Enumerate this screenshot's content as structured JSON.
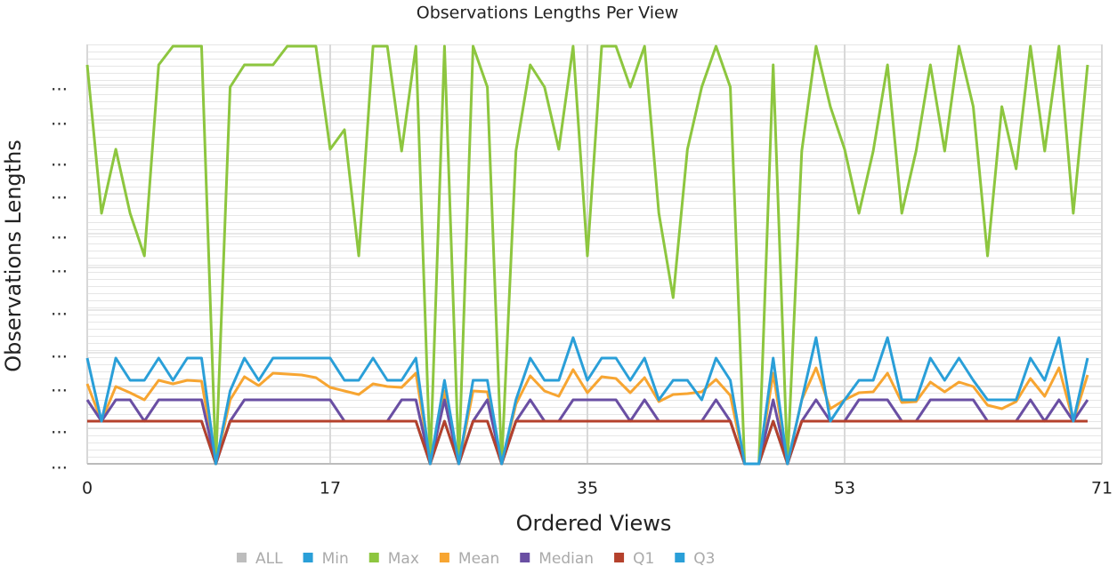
{
  "chart_data": {
    "type": "line",
    "title": "Observations Lengths Per View",
    "x_label": "Ordered Views",
    "y_label": "Observations Lengths",
    "x": [
      0,
      1,
      2,
      3,
      4,
      5,
      6,
      7,
      8,
      9,
      10,
      11,
      12,
      13,
      14,
      15,
      16,
      17,
      18,
      19,
      20,
      21,
      22,
      23,
      24,
      25,
      26,
      27,
      28,
      29,
      30,
      31,
      32,
      33,
      34,
      35,
      36,
      37,
      38,
      39,
      40,
      41,
      42,
      43,
      44,
      45,
      46,
      47,
      48,
      49,
      50,
      51,
      52,
      53,
      54,
      55,
      56,
      57,
      58,
      59,
      60,
      61,
      62,
      63,
      64,
      65,
      66,
      67,
      68,
      69,
      70
    ],
    "xlim": [
      0,
      71
    ],
    "xticks": [
      0,
      17,
      35,
      53,
      71
    ],
    "ylim": [
      0,
      472
    ],
    "yticks": [
      {
        "value": 0,
        "label": "…"
      },
      {
        "value": 40,
        "label": "…"
      },
      {
        "value": 87,
        "label": "…"
      },
      {
        "value": 125,
        "label": "…"
      },
      {
        "value": 173,
        "label": "…"
      },
      {
        "value": 221,
        "label": "…"
      },
      {
        "value": 259,
        "label": "…"
      },
      {
        "value": 304,
        "label": "…"
      },
      {
        "value": 341,
        "label": "…"
      },
      {
        "value": 387,
        "label": "…"
      },
      {
        "value": 426,
        "label": "…"
      }
    ],
    "grid": true,
    "legend_position": "bottom",
    "legend_extra": [
      {
        "name": "ALL",
        "color": "#bdbdbd"
      }
    ],
    "series": [
      {
        "name": "Min",
        "color": "#2a9fd8",
        "values": [
          48,
          48,
          48,
          48,
          48,
          48,
          48,
          48,
          48,
          0,
          48,
          48,
          48,
          48,
          48,
          48,
          48,
          48,
          48,
          48,
          48,
          48,
          48,
          48,
          0,
          48,
          0,
          48,
          48,
          0,
          48,
          48,
          48,
          48,
          48,
          48,
          48,
          48,
          48,
          48,
          48,
          48,
          48,
          48,
          48,
          48,
          0,
          0,
          48,
          0,
          48,
          48,
          48,
          48,
          48,
          48,
          48,
          48,
          48,
          48,
          48,
          48,
          48,
          48,
          48,
          48,
          48,
          48,
          48,
          48,
          48
        ]
      },
      {
        "name": "Max",
        "color": "#8dc63f",
        "values": [
          449,
          282,
          354,
          282,
          234,
          449,
          470,
          470,
          470,
          0,
          424,
          449,
          449,
          449,
          470,
          470,
          470,
          354,
          376,
          234,
          470,
          470,
          352,
          470,
          0,
          470,
          0,
          470,
          424,
          0,
          352,
          449,
          424,
          354,
          470,
          234,
          470,
          470,
          424,
          470,
          282,
          187,
          354,
          424,
          470,
          424,
          0,
          0,
          449,
          0,
          352,
          470,
          402,
          354,
          282,
          352,
          449,
          282,
          352,
          449,
          352,
          470,
          402,
          234,
          402,
          332,
          470,
          352,
          470,
          282,
          449
        ]
      },
      {
        "name": "Mean",
        "color": "#f7a531",
        "values": [
          90,
          48,
          87,
          80,
          72,
          94,
          90,
          94,
          93,
          0,
          72,
          98,
          88,
          102,
          101,
          100,
          97,
          86,
          82,
          78,
          90,
          87,
          86,
          102,
          0,
          82,
          0,
          82,
          81,
          0,
          67,
          99,
          82,
          76,
          106,
          80,
          98,
          96,
          80,
          97,
          70,
          78,
          79,
          81,
          95,
          77,
          0,
          0,
          102,
          0,
          72,
          108,
          62,
          72,
          80,
          81,
          102,
          69,
          70,
          92,
          81,
          92,
          87,
          66,
          62,
          70,
          96,
          76,
          108,
          48,
          100
        ]
      },
      {
        "name": "Median",
        "color": "#6a4fa3",
        "values": [
          72,
          48,
          72,
          72,
          48,
          72,
          72,
          72,
          72,
          0,
          48,
          72,
          72,
          72,
          72,
          72,
          72,
          72,
          48,
          48,
          48,
          48,
          72,
          72,
          0,
          72,
          0,
          48,
          72,
          0,
          48,
          72,
          48,
          48,
          72,
          72,
          72,
          72,
          48,
          72,
          48,
          48,
          48,
          48,
          72,
          48,
          0,
          0,
          72,
          0,
          48,
          72,
          48,
          48,
          72,
          72,
          72,
          48,
          48,
          72,
          72,
          72,
          72,
          48,
          48,
          48,
          72,
          48,
          72,
          48,
          72
        ]
      },
      {
        "name": "Q1",
        "color": "#b5412c",
        "values": [
          48,
          48,
          48,
          48,
          48,
          48,
          48,
          48,
          48,
          0,
          48,
          48,
          48,
          48,
          48,
          48,
          48,
          48,
          48,
          48,
          48,
          48,
          48,
          48,
          0,
          48,
          0,
          48,
          48,
          0,
          48,
          48,
          48,
          48,
          48,
          48,
          48,
          48,
          48,
          48,
          48,
          48,
          48,
          48,
          48,
          48,
          0,
          0,
          48,
          0,
          48,
          48,
          48,
          48,
          48,
          48,
          48,
          48,
          48,
          48,
          48,
          48,
          48,
          48,
          48,
          48,
          48,
          48,
          48,
          48,
          48
        ]
      },
      {
        "name": "Q3",
        "color": "#2a9fd8",
        "values": [
          119,
          48,
          119,
          94,
          94,
          119,
          94,
          119,
          119,
          0,
          82,
          119,
          94,
          119,
          119,
          119,
          119,
          119,
          94,
          94,
          119,
          94,
          94,
          119,
          0,
          94,
          0,
          94,
          94,
          0,
          72,
          119,
          94,
          94,
          142,
          94,
          119,
          119,
          94,
          119,
          72,
          94,
          94,
          72,
          119,
          94,
          0,
          0,
          119,
          0,
          72,
          142,
          48,
          72,
          94,
          94,
          142,
          72,
          72,
          119,
          94,
          119,
          94,
          72,
          72,
          72,
          119,
          94,
          142,
          48,
          119
        ]
      }
    ]
  }
}
